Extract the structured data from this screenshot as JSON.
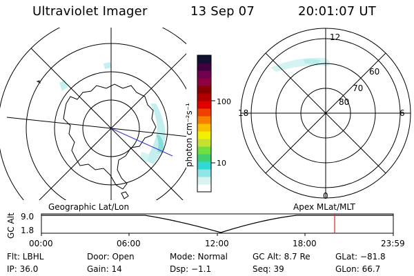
{
  "header": {
    "instrument": "Ultraviolet Imager",
    "date": "13 Sep 07",
    "time": "20:01:07 UT"
  },
  "left_panel": {
    "label": "Geographic Lat/Lon"
  },
  "right_panel": {
    "label": "Apex MLat/MLT",
    "mlt_labels": {
      "top": "12",
      "left": "18",
      "right": "6",
      "bottom": "0"
    },
    "lat_labels": [
      "60",
      "70",
      "80"
    ]
  },
  "colorbar": {
    "axis_title": "photon cm⁻²s⁻¹",
    "ticks": [
      "100",
      "10"
    ],
    "colors": [
      "#ffffff",
      "#d8f2f2",
      "#8fe6e6",
      "#30d8d8",
      "#40d070",
      "#70e040",
      "#c8e030",
      "#f0f000",
      "#f8c000",
      "#f88000",
      "#f04000",
      "#e00000",
      "#b00000",
      "#880000",
      "#900040",
      "#700050",
      "#400040",
      "#101030"
    ]
  },
  "altitude_plot": {
    "y_axis_label": "GC Alt",
    "y_ticks": [
      "9.0",
      "1.8"
    ],
    "x_ticks": [
      "00:00",
      "06:00",
      "12:00",
      "18:00",
      "23:59"
    ],
    "marker_time": "20:01",
    "marker_color": "#dd2222"
  },
  "footer": {
    "row1": [
      "Flt: LBHL",
      "Door: Open",
      "Mode: Normal",
      "GC Alt: 8.7 Re",
      "GLat: −81.8"
    ],
    "row2": [
      "IP: 36.0",
      "Gain: 14",
      "Dsp:   −1.1",
      "Seq: 39",
      "GLon:  66.7"
    ]
  }
}
